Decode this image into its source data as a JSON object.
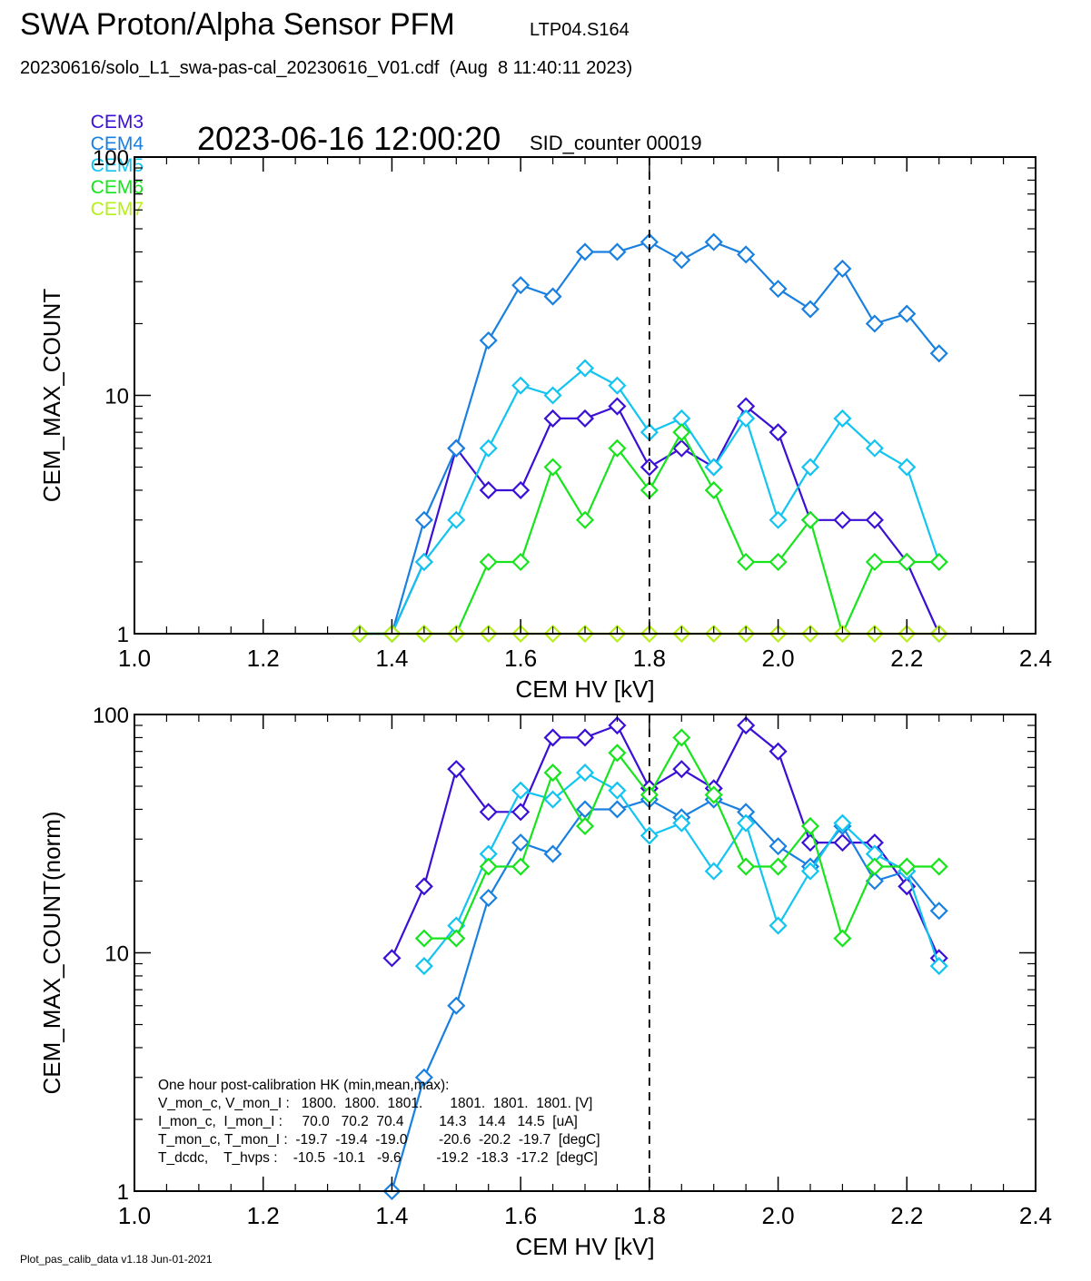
{
  "header": {
    "title": "SWA Proton/Alpha Sensor PFM",
    "subtitle_id": "LTP04.S164",
    "file_line": "20230616/solo_L1_swa-pas-cal_20230616_V01.cdf  (Aug  8 11:40:11 2023)",
    "timestamp": "2023-06-16 12:00:20",
    "sid": "SID_counter 00019"
  },
  "legend": [
    {
      "name": "CEM3",
      "color": "#3a10d6"
    },
    {
      "name": "CEM4",
      "color": "#1a80e0"
    },
    {
      "name": "CEM5",
      "color": "#12c4f0"
    },
    {
      "name": "CEM6",
      "color": "#18e41e"
    },
    {
      "name": "CEM7",
      "color": "#b6f018"
    }
  ],
  "footer": "Plot_pas_calib_data v1.18 Jun-01-2021",
  "hk_box": {
    "lines": [
      "One hour post-calibration HK (min,mean,max):",
      "V_mon_c, V_mon_I :   1800.  1800.  1801.       1801.  1801.  1801. [V]",
      "I_mon_c,  I_mon_I :     70.0   70.2  70.4         14.3   14.4   14.5  [uA]",
      "T_mon_c, T_mon_I :  -19.7  -19.4  -19.0        -20.6  -20.2  -19.7  [degC]",
      "T_dcdc,    T_hvps :    -10.5  -10.1   -9.6         -19.2  -18.3  -17.2  [degC]"
    ]
  },
  "chart_data": [
    {
      "type": "line",
      "marker": "diamond",
      "xlabel": "CEM HV [kV]",
      "ylabel": "CEM_MAX_COUNT",
      "xlim": [
        1.0,
        2.4
      ],
      "ylim": [
        1,
        100
      ],
      "yscale": "log",
      "xticks": [
        "1.0",
        "1.2",
        "1.4",
        "1.6",
        "1.8",
        "2.0",
        "2.2",
        "2.4"
      ],
      "yticks": [
        "1",
        "10",
        "100"
      ],
      "vline": 1.8,
      "series": [
        {
          "name": "CEM3",
          "color": "#3a10d6",
          "x": [
            1.35,
            1.4,
            1.45,
            1.5,
            1.55,
            1.6,
            1.65,
            1.7,
            1.75,
            1.8,
            1.85,
            1.9,
            1.95,
            2.0,
            2.05,
            2.1,
            2.15,
            2.2,
            2.25
          ],
          "y": [
            1,
            1,
            2,
            6,
            4,
            4,
            8,
            8,
            9,
            5,
            6,
            5,
            9,
            7,
            3,
            3,
            3,
            2,
            1
          ]
        },
        {
          "name": "CEM4",
          "color": "#1a80e0",
          "x": [
            1.35,
            1.4,
            1.45,
            1.5,
            1.55,
            1.6,
            1.65,
            1.7,
            1.75,
            1.8,
            1.85,
            1.9,
            1.95,
            2.0,
            2.05,
            2.1,
            2.15,
            2.2,
            2.25
          ],
          "y": [
            1,
            1,
            3,
            6,
            17,
            29,
            26,
            40,
            40,
            44,
            37,
            44,
            39,
            28,
            23,
            34,
            20,
            22,
            15
          ]
        },
        {
          "name": "CEM5",
          "color": "#12c4f0",
          "x": [
            1.35,
            1.4,
            1.45,
            1.5,
            1.55,
            1.6,
            1.65,
            1.7,
            1.75,
            1.8,
            1.85,
            1.9,
            1.95,
            2.0,
            2.05,
            2.1,
            2.15,
            2.2,
            2.25
          ],
          "y": [
            1,
            1,
            2,
            3,
            6,
            11,
            10,
            13,
            11,
            7,
            8,
            5,
            8,
            3,
            5,
            8,
            6,
            5,
            2
          ]
        },
        {
          "name": "CEM6",
          "color": "#18e41e",
          "x": [
            1.35,
            1.4,
            1.45,
            1.5,
            1.55,
            1.6,
            1.65,
            1.7,
            1.75,
            1.8,
            1.85,
            1.9,
            1.95,
            2.0,
            2.05,
            2.1,
            2.15,
            2.2,
            2.25
          ],
          "y": [
            1,
            1,
            1,
            1,
            2,
            2,
            5,
            3,
            6,
            4,
            7,
            4,
            2,
            2,
            3,
            1,
            2,
            2,
            2
          ]
        },
        {
          "name": "CEM7",
          "color": "#b6f018",
          "x": [
            1.35,
            1.4,
            1.45,
            1.5,
            1.55,
            1.6,
            1.65,
            1.7,
            1.75,
            1.8,
            1.85,
            1.9,
            1.95,
            2.0,
            2.05,
            2.1,
            2.15,
            2.2,
            2.25
          ],
          "y": [
            1,
            1,
            1,
            1,
            1,
            1,
            1,
            1,
            1,
            1,
            1,
            1,
            1,
            1,
            1,
            1,
            1,
            1,
            1
          ]
        }
      ]
    },
    {
      "type": "line",
      "marker": "diamond",
      "xlabel": "CEM HV [kV]",
      "ylabel": "CEM_MAX_COUNT(norm)",
      "xlim": [
        1.0,
        2.4
      ],
      "ylim": [
        1,
        100
      ],
      "yscale": "log",
      "xticks": [
        "1.0",
        "1.2",
        "1.4",
        "1.6",
        "1.8",
        "2.0",
        "2.2",
        "2.4"
      ],
      "yticks": [
        "1",
        "10",
        "100"
      ],
      "vline": 1.8,
      "series": [
        {
          "name": "CEM3",
          "color": "#3a10d6",
          "x": [
            1.4,
            1.45,
            1.5,
            1.55,
            1.6,
            1.65,
            1.7,
            1.75,
            1.8,
            1.85,
            1.9,
            1.95,
            2.0,
            2.05,
            2.1,
            2.15,
            2.2,
            2.25
          ],
          "y": [
            9.5,
            19,
            59,
            39,
            39,
            80,
            80,
            90,
            49,
            59,
            49,
            90,
            70,
            29,
            29,
            29,
            19,
            9.5
          ]
        },
        {
          "name": "CEM4",
          "color": "#1a80e0",
          "x": [
            1.4,
            1.45,
            1.5,
            1.55,
            1.6,
            1.65,
            1.7,
            1.75,
            1.8,
            1.85,
            1.9,
            1.95,
            2.0,
            2.05,
            2.1,
            2.15,
            2.2,
            2.25
          ],
          "y": [
            1,
            3,
            6,
            17,
            29,
            26,
            40,
            40,
            44,
            37,
            44,
            39,
            28,
            23,
            34,
            20,
            22,
            15
          ]
        },
        {
          "name": "CEM5",
          "color": "#12c4f0",
          "x": [
            1.45,
            1.5,
            1.55,
            1.6,
            1.65,
            1.7,
            1.75,
            1.8,
            1.85,
            1.9,
            1.95,
            2.0,
            2.05,
            2.1,
            2.15,
            2.2,
            2.25
          ],
          "y": [
            8.8,
            13,
            26,
            48,
            44,
            57,
            48,
            31,
            35,
            22,
            35,
            13,
            22,
            35,
            26,
            22,
            8.8
          ]
        },
        {
          "name": "CEM6",
          "color": "#18e41e",
          "x": [
            1.45,
            1.5,
            1.55,
            1.6,
            1.65,
            1.7,
            1.75,
            1.8,
            1.85,
            1.9,
            1.95,
            2.0,
            2.05,
            2.1,
            2.15,
            2.2,
            2.25
          ],
          "y": [
            11.5,
            11.5,
            23,
            23,
            57,
            34,
            69,
            46,
            80,
            46,
            23,
            23,
            34,
            11.5,
            23,
            23,
            23
          ]
        }
      ]
    }
  ]
}
